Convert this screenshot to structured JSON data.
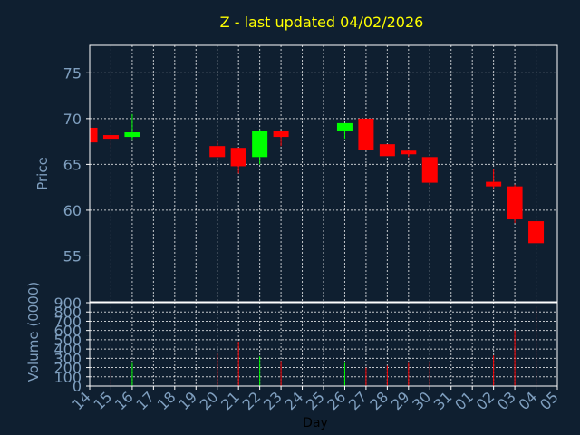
{
  "chart_data": {
    "type": "candlestick",
    "title": "Z - last updated 04/02/2026",
    "xlabel": "Day",
    "colors": {
      "background": "#0f1f30",
      "axes": "#ffffff",
      "grid": "#ffffff",
      "title": "#ffff00",
      "tick_text": "#7f9fbf",
      "up": "#00ff00",
      "down": "#ff0000"
    },
    "x_ticks": [
      "14",
      "15",
      "16",
      "17",
      "18",
      "19",
      "20",
      "21",
      "22",
      "23",
      "24",
      "25",
      "26",
      "27",
      "28",
      "29",
      "30",
      "31",
      "01",
      "02",
      "03",
      "04",
      "05"
    ],
    "price_panel": {
      "ylabel": "Price",
      "ylim": [
        50,
        78
      ],
      "yticks": [
        55,
        60,
        65,
        70,
        75
      ],
      "grid": true
    },
    "volume_panel": {
      "ylabel": "Volume (0000)",
      "ylim": [
        0,
        900
      ],
      "yticks": [
        0,
        100,
        200,
        300,
        400,
        500,
        600,
        700,
        800,
        900
      ],
      "grid": true
    },
    "candles": [
      {
        "day": 14,
        "open": 69.0,
        "high": 69.0,
        "low": 67.4,
        "close": 67.4,
        "volume": 0
      },
      {
        "day": 15,
        "open": 68.2,
        "high": 68.3,
        "low": 66.8,
        "close": 67.8,
        "volume": 200
      },
      {
        "day": 16,
        "open": 68.0,
        "high": 70.5,
        "low": 67.6,
        "close": 68.5,
        "volume": 250
      },
      {
        "day": 20,
        "open": 67.0,
        "high": 67.5,
        "low": 65.8,
        "close": 65.8,
        "volume": 350
      },
      {
        "day": 21,
        "open": 66.8,
        "high": 66.8,
        "low": 64.0,
        "close": 64.8,
        "volume": 480
      },
      {
        "day": 22,
        "open": 65.8,
        "high": 68.8,
        "low": 65.0,
        "close": 68.6,
        "volume": 320
      },
      {
        "day": 23,
        "open": 68.6,
        "high": 68.7,
        "low": 67.0,
        "close": 68.0,
        "volume": 270
      },
      {
        "day": 26,
        "open": 68.6,
        "high": 69.5,
        "low": 67.8,
        "close": 69.5,
        "volume": 250
      },
      {
        "day": 27,
        "open": 70.0,
        "high": 70.0,
        "low": 66.6,
        "close": 66.6,
        "volume": 200
      },
      {
        "day": 28,
        "open": 67.2,
        "high": 67.2,
        "low": 65.9,
        "close": 65.9,
        "volume": 220
      },
      {
        "day": 29,
        "open": 66.5,
        "high": 66.5,
        "low": 65.8,
        "close": 66.1,
        "volume": 250
      },
      {
        "day": 30,
        "open": 65.8,
        "high": 65.8,
        "low": 62.7,
        "close": 63.0,
        "volume": 260
      },
      {
        "day": 2,
        "open": 63.1,
        "high": 64.5,
        "low": 62.4,
        "close": 62.6,
        "volume": 330
      },
      {
        "day": 3,
        "open": 62.6,
        "high": 62.8,
        "low": 58.6,
        "close": 59.0,
        "volume": 600
      },
      {
        "day": 4,
        "open": 58.8,
        "high": 58.8,
        "low": 56.4,
        "close": 56.4,
        "volume": 850
      }
    ]
  }
}
